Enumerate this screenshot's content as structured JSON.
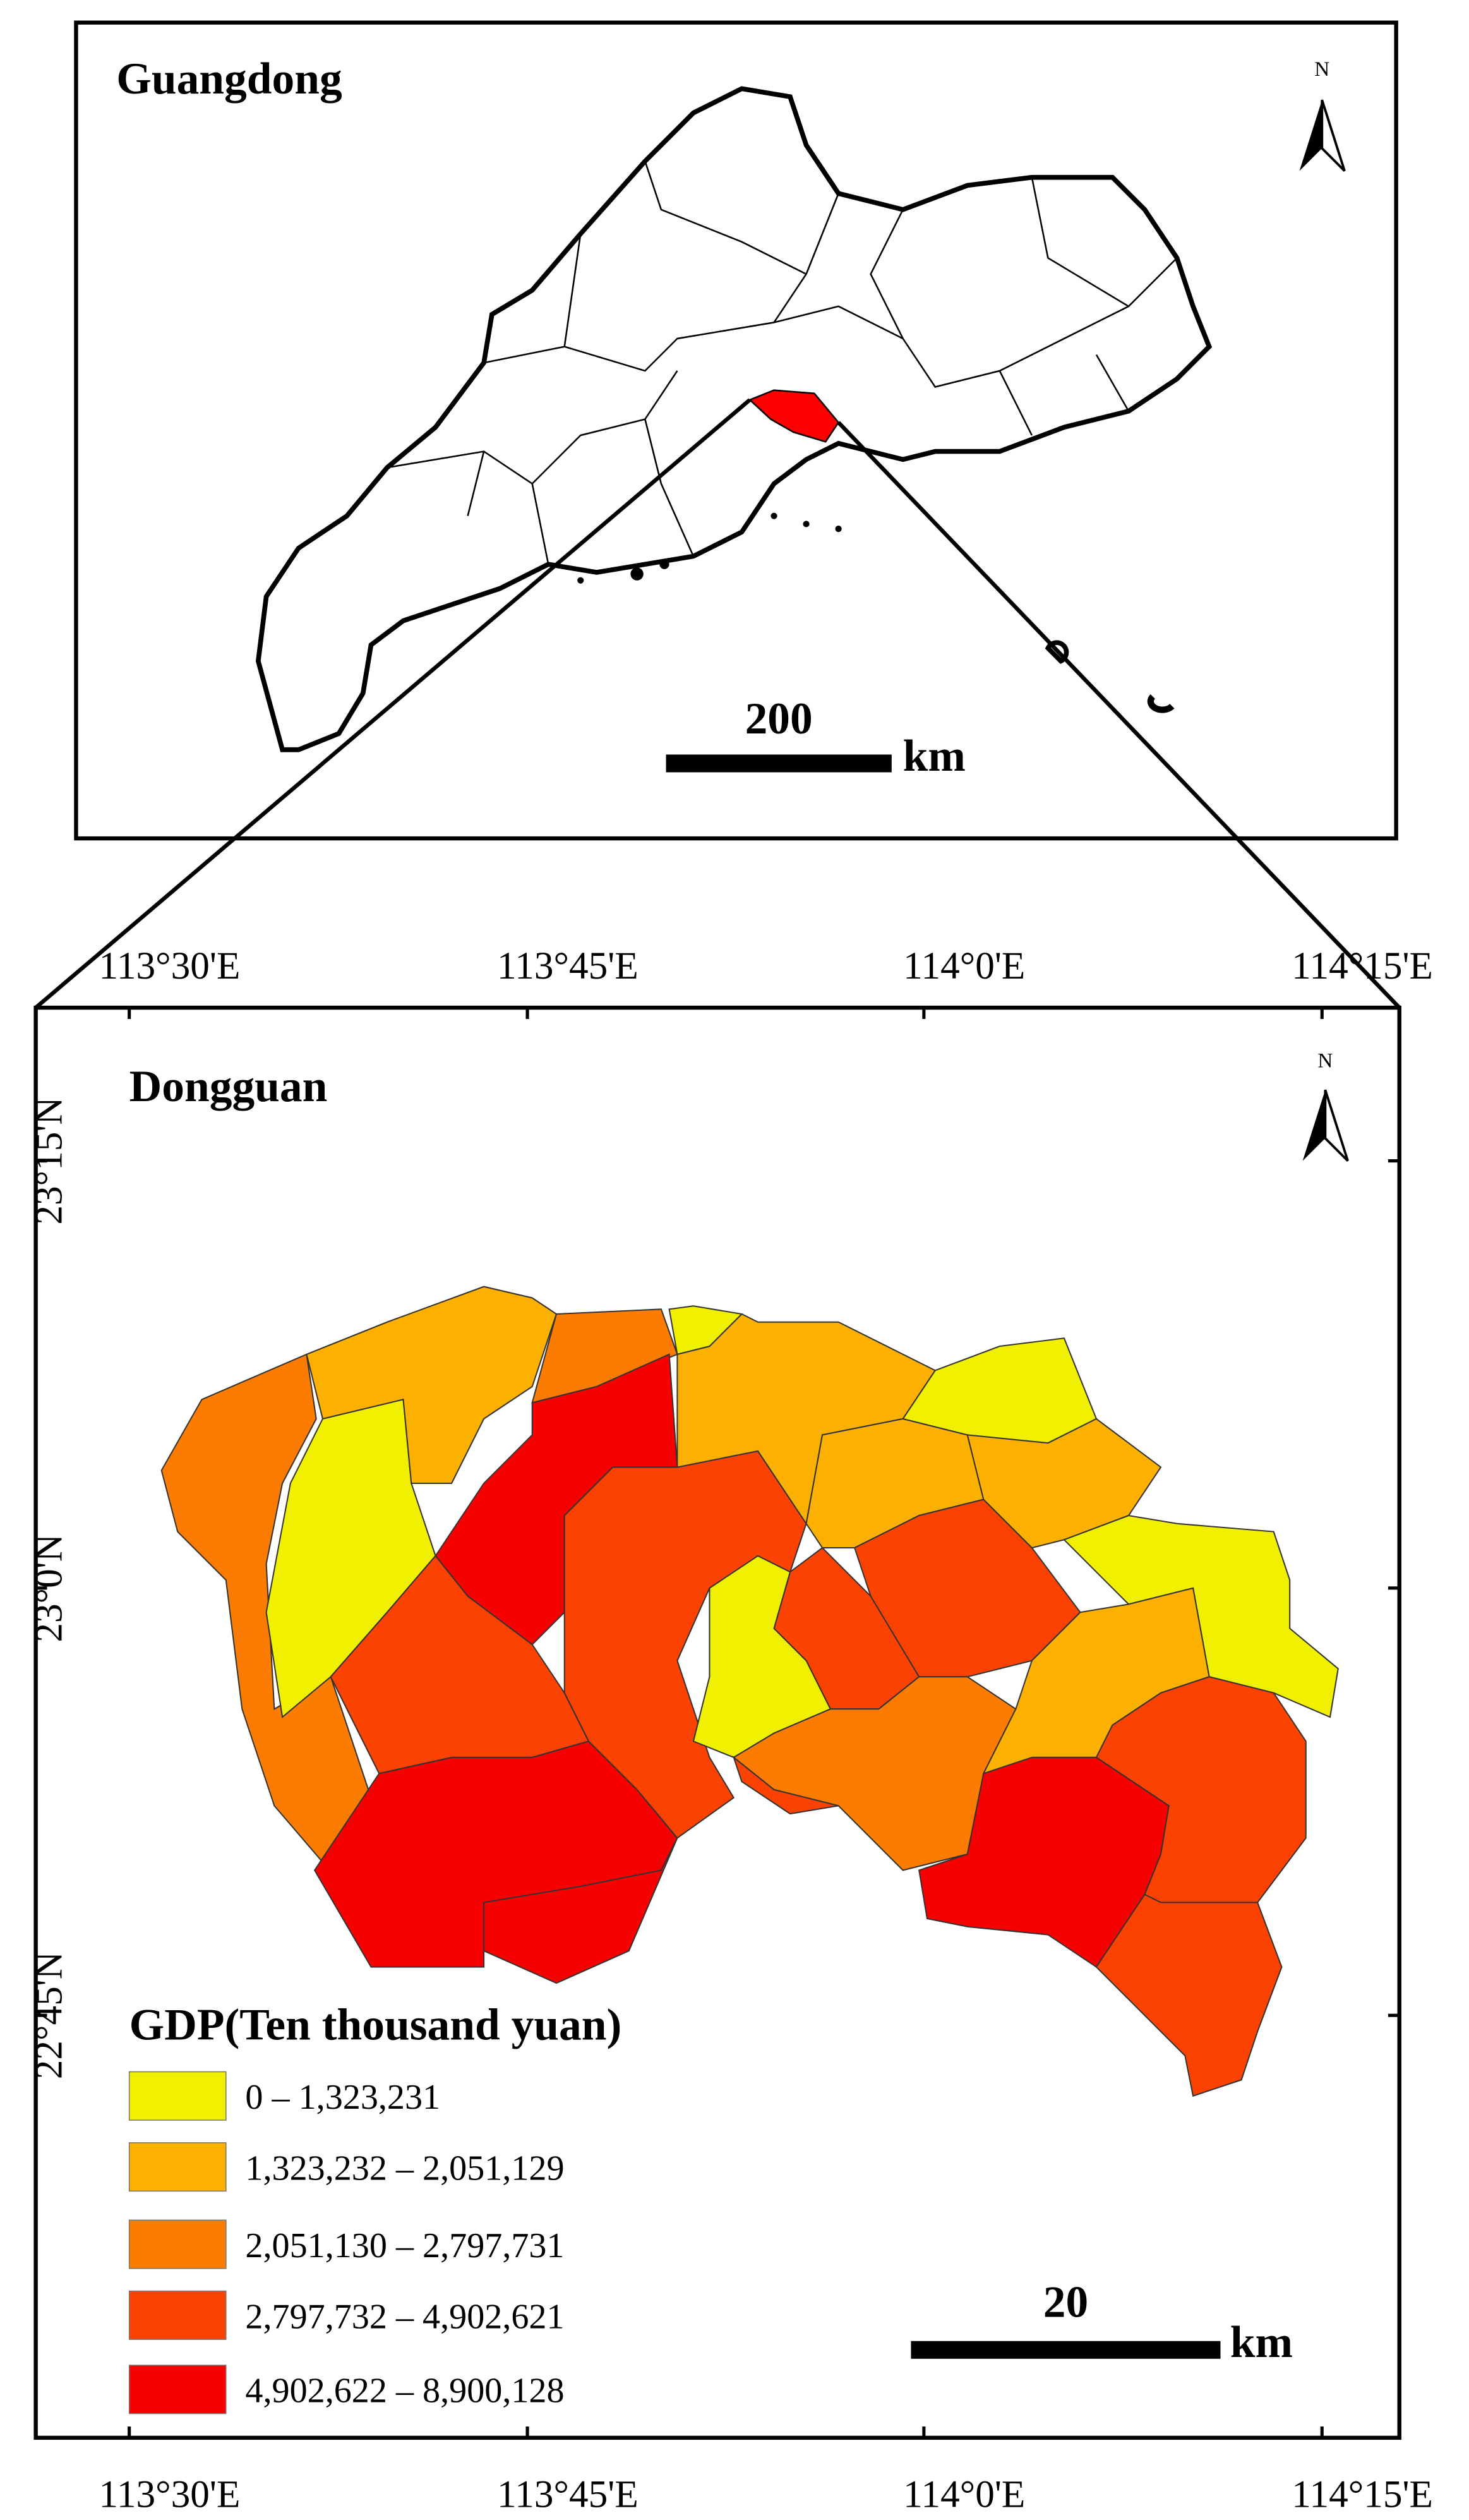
{
  "guangdong_map": {
    "title": "Guangdong",
    "north": "N",
    "scale_value": "200",
    "scale_unit": "km",
    "highlight_color": "#ff0000"
  },
  "dongguan_map": {
    "title": "Dongguan",
    "north": "N",
    "scale_value": "20",
    "scale_unit": "km",
    "longitude_labels": [
      "113°30'E",
      "113°45'E",
      "114°0'E",
      "114°15'E"
    ],
    "latitude_labels": [
      "23°15'N",
      "23°0'N",
      "22°45'N"
    ],
    "legend": {
      "title": "GDP(Ten thousand yuan)",
      "items": [
        {
          "label": "0 – 1,323,231",
          "color": "#f0f000"
        },
        {
          "label": "1,323,232 – 2,051,129",
          "color": "#fcb000"
        },
        {
          "label": "2,051,130 – 2,797,731",
          "color": "#fb7c00"
        },
        {
          "label": "2,797,732 – 4,902,621",
          "color": "#fc4200"
        },
        {
          "label": "4,902,622 – 8,900,128",
          "color": "#f80000"
        }
      ]
    }
  }
}
